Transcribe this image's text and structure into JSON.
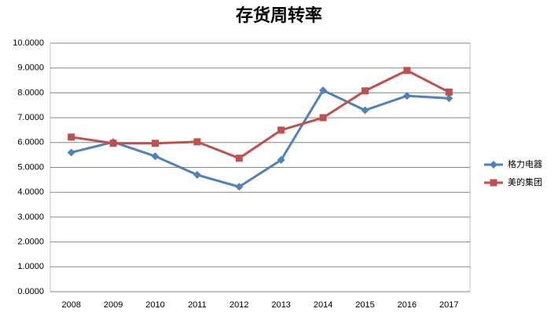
{
  "chart_data": {
    "type": "line",
    "title": "存货周转率",
    "categories": [
      "2008",
      "2009",
      "2010",
      "2011",
      "2012",
      "2013",
      "2014",
      "2015",
      "2016",
      "2017"
    ],
    "series": [
      {
        "name": "格力电器",
        "color": "#4f81bd",
        "marker": "diamond",
        "values": [
          5.6,
          6.02,
          5.45,
          4.7,
          4.22,
          5.3,
          8.1,
          7.3,
          7.88,
          7.78
        ]
      },
      {
        "name": "美的集团",
        "color": "#c0504d",
        "marker": "square",
        "values": [
          6.22,
          5.97,
          5.97,
          6.03,
          5.37,
          6.5,
          7.0,
          8.08,
          8.9,
          8.03
        ]
      }
    ],
    "ylim": [
      0,
      10
    ],
    "yticks": [
      {
        "value": 0,
        "label": "0.0000"
      },
      {
        "value": 1,
        "label": "1.0000"
      },
      {
        "value": 2,
        "label": "2.0000"
      },
      {
        "value": 3,
        "label": "3.0000"
      },
      {
        "value": 4,
        "label": "4.0000"
      },
      {
        "value": 5,
        "label": "5.0000"
      },
      {
        "value": 6,
        "label": "6.0000"
      },
      {
        "value": 7,
        "label": "7.0000"
      },
      {
        "value": 8,
        "label": "8.0000"
      },
      {
        "value": 9,
        "label": "9.0000"
      },
      {
        "value": 10,
        "label": "10.0000"
      }
    ],
    "grid": true,
    "legend": "right"
  }
}
